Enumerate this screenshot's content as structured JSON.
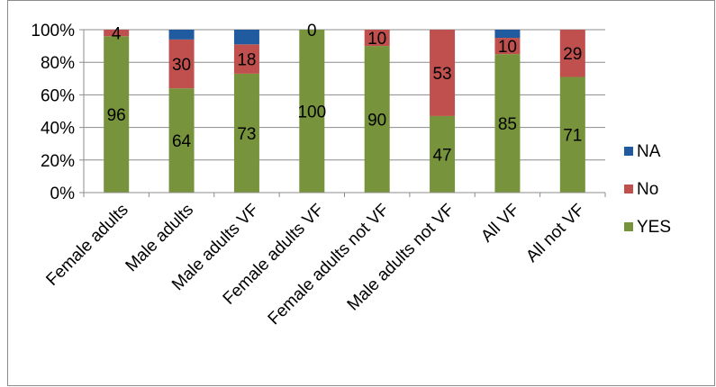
{
  "chart_data": {
    "type": "bar",
    "stacked": true,
    "percent": true,
    "categories": [
      "Female adults",
      "Male adults",
      "Male adults VF",
      "Female adults VF",
      "Female adults not VF",
      "Male adults not VF",
      "All VF",
      "All not VF"
    ],
    "series": [
      {
        "name": "YES",
        "color": "#77933c",
        "values": [
          96,
          64,
          73,
          100,
          90,
          47,
          85,
          71
        ],
        "labels": [
          "96",
          "64",
          "73",
          "100",
          "90",
          "47",
          "85",
          "71"
        ]
      },
      {
        "name": "No",
        "color": "#c0504d",
        "values": [
          4,
          30,
          18,
          0,
          10,
          53,
          10,
          29
        ],
        "labels": [
          "4",
          "30",
          "18",
          "0",
          "10",
          "53",
          "10",
          "29"
        ]
      },
      {
        "name": "NA",
        "color": "#1f5b9e",
        "values": [
          0,
          6,
          9,
          0,
          0,
          0,
          5,
          0
        ],
        "labels": [
          "",
          "",
          "",
          "",
          "",
          "",
          "",
          ""
        ]
      }
    ],
    "ylim": [
      0,
      100
    ],
    "yticks": [
      0,
      20,
      40,
      60,
      80,
      100
    ],
    "ytick_labels": [
      "0%",
      "20%",
      "40%",
      "60%",
      "80%",
      "100%"
    ],
    "grid": true,
    "legend_position": "right",
    "legend_order": [
      "NA",
      "No",
      "YES"
    ]
  }
}
